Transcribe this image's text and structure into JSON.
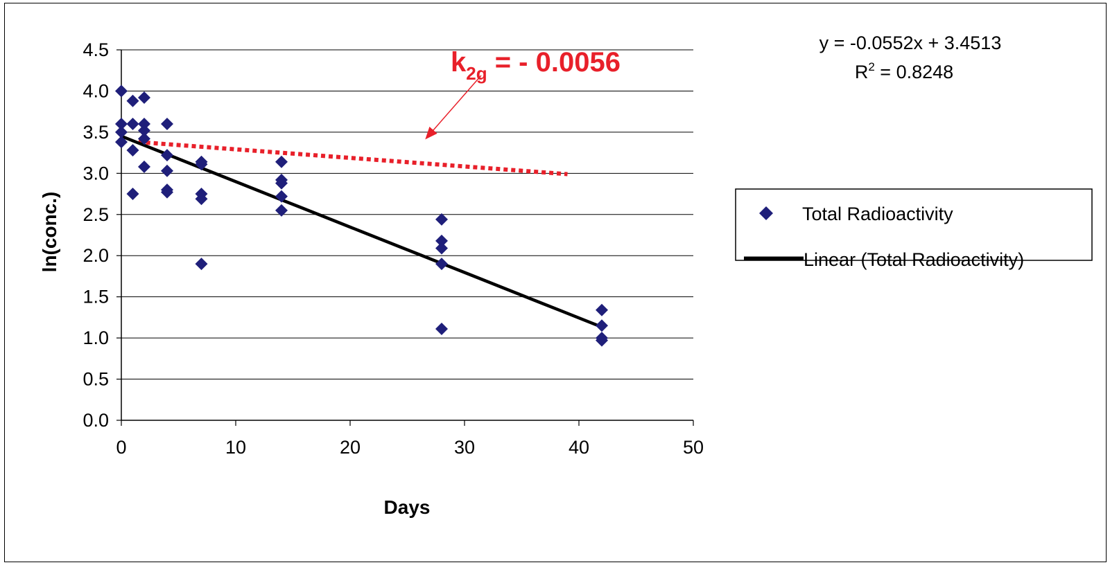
{
  "chart_data": {
    "type": "scatter",
    "title": "",
    "xlabel": "Days",
    "ylabel": "ln(conc.)",
    "xlim": [
      0,
      50
    ],
    "ylim": [
      0.0,
      4.5
    ],
    "x_ticks": [
      "0",
      "10",
      "20",
      "30",
      "40",
      "50"
    ],
    "y_ticks": [
      "0.0",
      "0.5",
      "1.0",
      "1.5",
      "2.0",
      "2.5",
      "3.0",
      "3.5",
      "4.0",
      "4.5"
    ],
    "grid": "horizontal",
    "legend_position": "right",
    "series": [
      {
        "name": "Total Radioactivity",
        "marker": "diamond",
        "color": "#1f1f7a",
        "points": [
          [
            0,
            4.0
          ],
          [
            0,
            3.6
          ],
          [
            0,
            3.5
          ],
          [
            0,
            3.38
          ],
          [
            1,
            3.88
          ],
          [
            1,
            3.6
          ],
          [
            1,
            3.28
          ],
          [
            1,
            2.75
          ],
          [
            2,
            3.92
          ],
          [
            2,
            3.6
          ],
          [
            2,
            3.52
          ],
          [
            2,
            3.42
          ],
          [
            2,
            3.08
          ],
          [
            4,
            3.6
          ],
          [
            4,
            3.22
          ],
          [
            4,
            3.03
          ],
          [
            4,
            2.8
          ],
          [
            4,
            2.77
          ],
          [
            7,
            3.14
          ],
          [
            7,
            3.11
          ],
          [
            7,
            2.75
          ],
          [
            7,
            2.69
          ],
          [
            7,
            1.9
          ],
          [
            14,
            3.14
          ],
          [
            14,
            2.92
          ],
          [
            14,
            2.88
          ],
          [
            14,
            2.72
          ],
          [
            14,
            2.55
          ],
          [
            28,
            2.44
          ],
          [
            28,
            2.18
          ],
          [
            28,
            2.09
          ],
          [
            28,
            1.9
          ],
          [
            28,
            1.11
          ],
          [
            42,
            1.34
          ],
          [
            42,
            1.15
          ],
          [
            42,
            1.0
          ],
          [
            42,
            0.97
          ]
        ]
      },
      {
        "name": "Linear (Total Radioactivity)",
        "type": "line",
        "color": "#000000",
        "slope": -0.0552,
        "intercept": 3.4513,
        "x_range": [
          0,
          42
        ]
      },
      {
        "type": "line",
        "style": "dotted",
        "color": "#e8202a",
        "points": [
          [
            1.5,
            3.38
          ],
          [
            39,
            2.99
          ]
        ]
      }
    ],
    "annotations": {
      "equation": "y = -0.0552x + 3.4513",
      "r_squared_prefix": "R",
      "r_squared_sup": "2",
      "r_squared_value": " = 0.8248",
      "k_label_main": "k",
      "k_label_sub": "2g",
      "k_label_value": " = - 0.0056",
      "k_label_color": "#e8202a",
      "arrow_target": [
        26.5,
        3.38
      ]
    }
  }
}
